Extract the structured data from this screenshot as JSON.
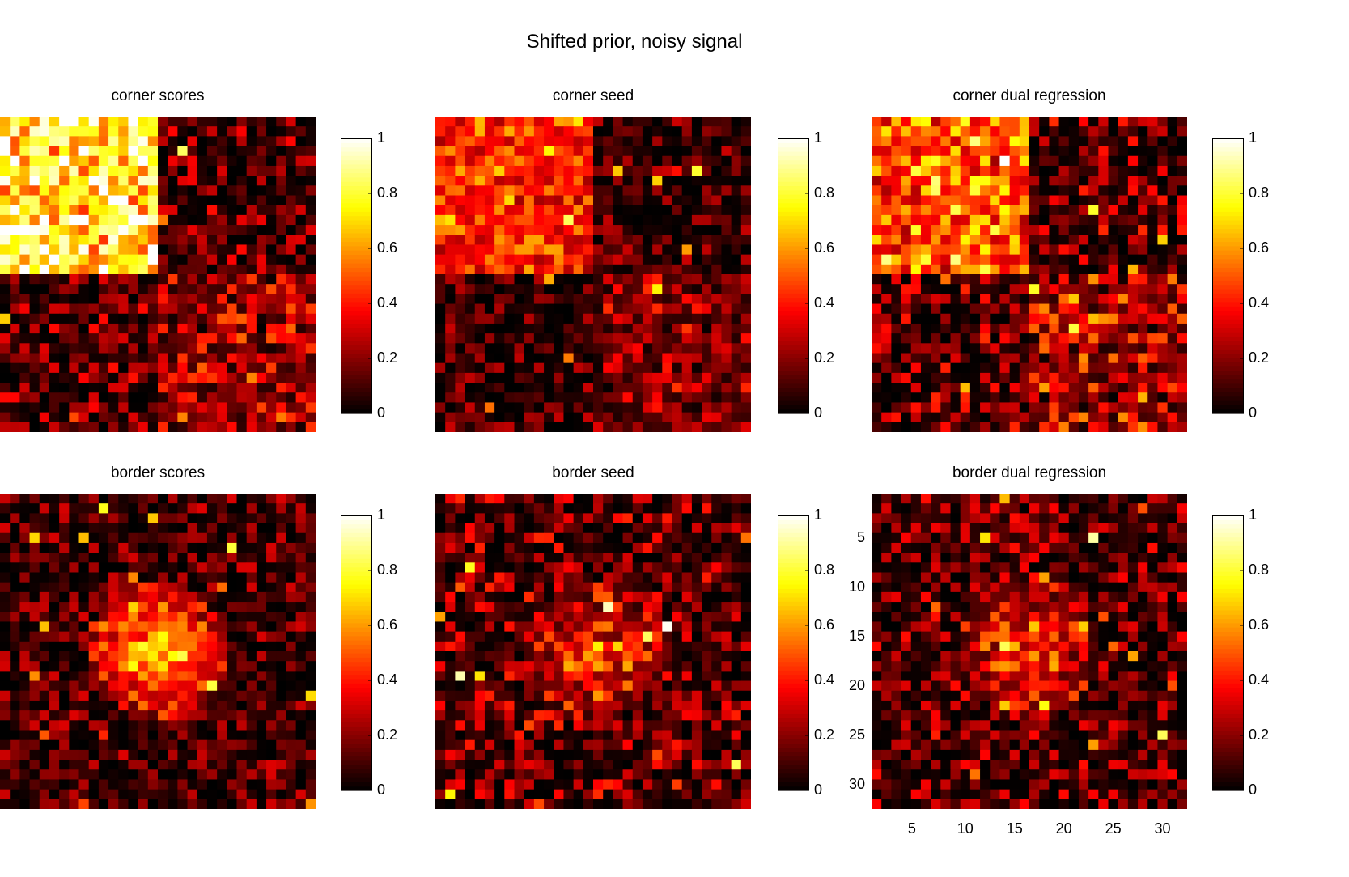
{
  "figure_title": "Shifted prior, noisy signal",
  "chart_data": [
    {
      "type": "heatmap",
      "title": "corner scores",
      "grid": [
        32,
        32
      ],
      "clim": [
        0,
        1
      ],
      "pattern": "corner",
      "strength": 0.75,
      "noise": 0.18,
      "colorbar_ticks": [
        "0",
        "0.2",
        "0.4",
        "0.6",
        "0.8",
        "1"
      ],
      "colormap": "hot"
    },
    {
      "type": "heatmap",
      "title": "corner seed",
      "grid": [
        32,
        32
      ],
      "clim": [
        0,
        1
      ],
      "pattern": "corner",
      "strength": 0.38,
      "noise": 0.14,
      "colorbar_ticks": [
        "0",
        "0.2",
        "0.4",
        "0.6",
        "0.8",
        "1"
      ],
      "colormap": "hot"
    },
    {
      "type": "heatmap",
      "title": "corner dual regression",
      "grid": [
        32,
        32
      ],
      "clim": [
        0,
        1
      ],
      "pattern": "corner",
      "strength": 0.42,
      "noise": 0.2,
      "colorbar_ticks": [
        "0",
        "0.2",
        "0.4",
        "0.6",
        "0.8",
        "1"
      ],
      "colormap": "hot"
    },
    {
      "type": "heatmap",
      "title": "border scores",
      "grid": [
        32,
        32
      ],
      "clim": [
        0,
        1
      ],
      "pattern": "center",
      "strength": 0.7,
      "noise": 0.15,
      "colorbar_ticks": [
        "0",
        "0.2",
        "0.4",
        "0.6",
        "0.8",
        "1"
      ],
      "colormap": "hot"
    },
    {
      "type": "heatmap",
      "title": "border seed",
      "grid": [
        32,
        32
      ],
      "clim": [
        0,
        1
      ],
      "pattern": "center",
      "strength": 0.32,
      "noise": 0.2,
      "colorbar_ticks": [
        "0",
        "0.2",
        "0.4",
        "0.6",
        "0.8",
        "1"
      ],
      "colormap": "hot"
    },
    {
      "type": "heatmap",
      "title": "border dual regression",
      "grid": [
        32,
        32
      ],
      "clim": [
        0,
        1
      ],
      "pattern": "center",
      "strength": 0.36,
      "noise": 0.18,
      "colorbar_ticks": [
        "0",
        "0.2",
        "0.4",
        "0.6",
        "0.8",
        "1"
      ],
      "colormap": "hot",
      "yticks": [
        "5",
        "10",
        "15",
        "20",
        "25",
        "30"
      ],
      "xticks": [
        "5",
        "10",
        "15",
        "20",
        "25",
        "30"
      ]
    }
  ]
}
